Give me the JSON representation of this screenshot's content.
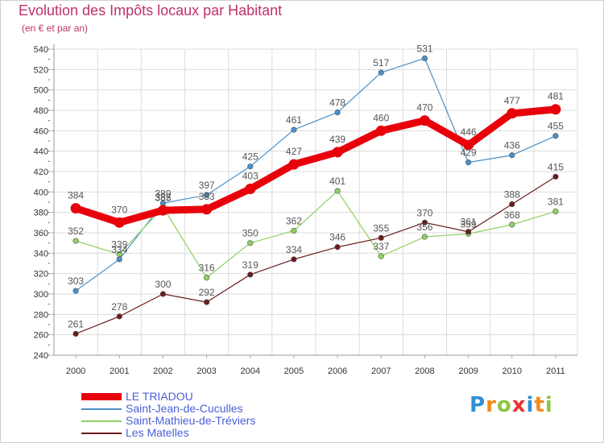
{
  "header": {
    "title": "Evolution des Impôts locaux par Habitant",
    "subtitle": "(en € et par an)"
  },
  "brand": {
    "letters": [
      "P",
      "r",
      "o",
      "x",
      "i",
      "t",
      "i"
    ],
    "colors": [
      "#2f8fd4",
      "#f08a1c",
      "#8cc63f",
      "#e8322d",
      "#2f8fd4",
      "#f08a1c",
      "#8cc63f"
    ]
  },
  "chart_data": {
    "type": "line",
    "title": "Evolution des Impôts locaux par Habitant",
    "subtitle": "(en € et par an)",
    "xlabel": "",
    "ylabel": "",
    "categories": [
      "2000",
      "2001",
      "2002",
      "2003",
      "2004",
      "2005",
      "2006",
      "2007",
      "2008",
      "2009",
      "2010",
      "2011"
    ],
    "ylim": [
      240,
      540
    ],
    "yticks": [
      240,
      260,
      280,
      300,
      320,
      340,
      360,
      380,
      400,
      420,
      440,
      460,
      480,
      500,
      520,
      540
    ],
    "grid": true,
    "legend_position": "bottom-left",
    "series": [
      {
        "name": "LE TRIADOU",
        "color": "#e8000b",
        "emphasis": true,
        "values": [
          384,
          370,
          382,
          383,
          403,
          427,
          439,
          460,
          470,
          446,
          477,
          481
        ]
      },
      {
        "name": "Saint-Jean-de-Cuculles",
        "color": "#4a90c8",
        "values": [
          303,
          334,
          389,
          397,
          425,
          461,
          478,
          517,
          531,
          429,
          436,
          455
        ]
      },
      {
        "name": "Saint-Mathieu-de-Tréviers",
        "color": "#8ed060",
        "values": [
          352,
          339,
          385,
          316,
          350,
          362,
          401,
          337,
          356,
          359,
          368,
          381
        ]
      },
      {
        "name": "Les Matelles",
        "color": "#6b1c1c",
        "values": [
          261,
          278,
          300,
          292,
          319,
          334,
          346,
          355,
          370,
          361,
          388,
          415
        ]
      }
    ]
  }
}
